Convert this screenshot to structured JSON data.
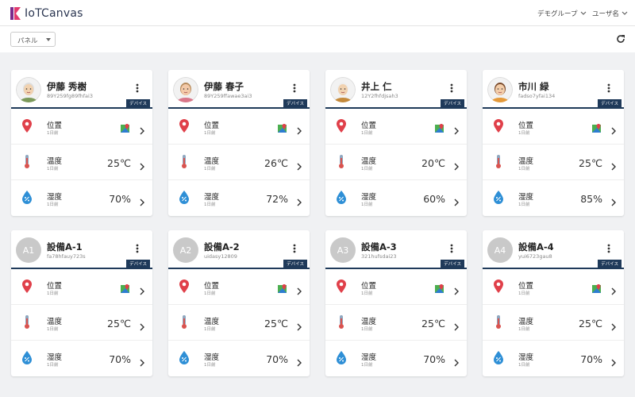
{
  "header": {
    "logo": "IoTCanvas",
    "menu": [
      "デモグループ",
      "ユーザ名"
    ]
  },
  "toolbar": {
    "select": "パネル"
  },
  "cards": [
    {
      "name": "伊藤 秀樹",
      "id": "89Y259fg89fhfai3",
      "badge": "デバイス",
      "rows": [
        {
          "label": "位置",
          "time": "1日前"
        },
        {
          "label": "温度",
          "time": "1日前",
          "value": "25℃"
        },
        {
          "label": "湿度",
          "time": "1日前",
          "value": "70%"
        }
      ]
    },
    {
      "name": "伊藤 春子",
      "id": "89Y259ffawae3ai3",
      "badge": "デバイス",
      "rows": [
        {
          "label": "位置",
          "time": "1日前"
        },
        {
          "label": "温度",
          "time": "1日前",
          "value": "26℃"
        },
        {
          "label": "湿度",
          "time": "1日前",
          "value": "72%"
        }
      ]
    },
    {
      "name": "井上 仁",
      "id": "12Y2fhfdjsah3",
      "badge": "デバイス",
      "rows": [
        {
          "label": "位置",
          "time": "1日前"
        },
        {
          "label": "温度",
          "time": "1日前",
          "value": "20℃"
        },
        {
          "label": "湿度",
          "time": "1日前",
          "value": "60%"
        }
      ]
    },
    {
      "name": "市川 緑",
      "id": "fadso7yfai134",
      "badge": "デバイス",
      "rows": [
        {
          "label": "位置",
          "time": "1日前"
        },
        {
          "label": "温度",
          "time": "1日前",
          "value": "25℃"
        },
        {
          "label": "湿度",
          "time": "1日前",
          "value": "85%"
        }
      ]
    },
    {
      "avatar": "A1",
      "name": "設備A-1",
      "id": "fa78hfauy723s",
      "badge": "デバイス",
      "rows": [
        {
          "label": "位置",
          "time": "1日前"
        },
        {
          "label": "温度",
          "time": "1日前",
          "value": "25℃"
        },
        {
          "label": "湿度",
          "time": "1日前",
          "value": "70%"
        }
      ]
    },
    {
      "avatar": "A2",
      "name": "設備A-2",
      "id": "uidasy12809",
      "badge": "デバイス",
      "rows": [
        {
          "label": "位置",
          "time": "1日前"
        },
        {
          "label": "温度",
          "time": "1日前",
          "value": "25℃"
        },
        {
          "label": "湿度",
          "time": "1日前",
          "value": "70%"
        }
      ]
    },
    {
      "avatar": "A3",
      "name": "設備A-3",
      "id": "321hufsdai23",
      "badge": "デバイス",
      "rows": [
        {
          "label": "位置",
          "time": "1日前"
        },
        {
          "label": "温度",
          "time": "1日前",
          "value": "25℃"
        },
        {
          "label": "湿度",
          "time": "1日前",
          "value": "70%"
        }
      ]
    },
    {
      "avatar": "A4",
      "name": "設備A-4",
      "id": "yui6723gau8",
      "badge": "デバイス",
      "rows": [
        {
          "label": "位置",
          "time": "1日前"
        },
        {
          "label": "温度",
          "time": "1日前",
          "value": "25℃"
        },
        {
          "label": "湿度",
          "time": "1日前",
          "value": "70%"
        }
      ]
    }
  ]
}
